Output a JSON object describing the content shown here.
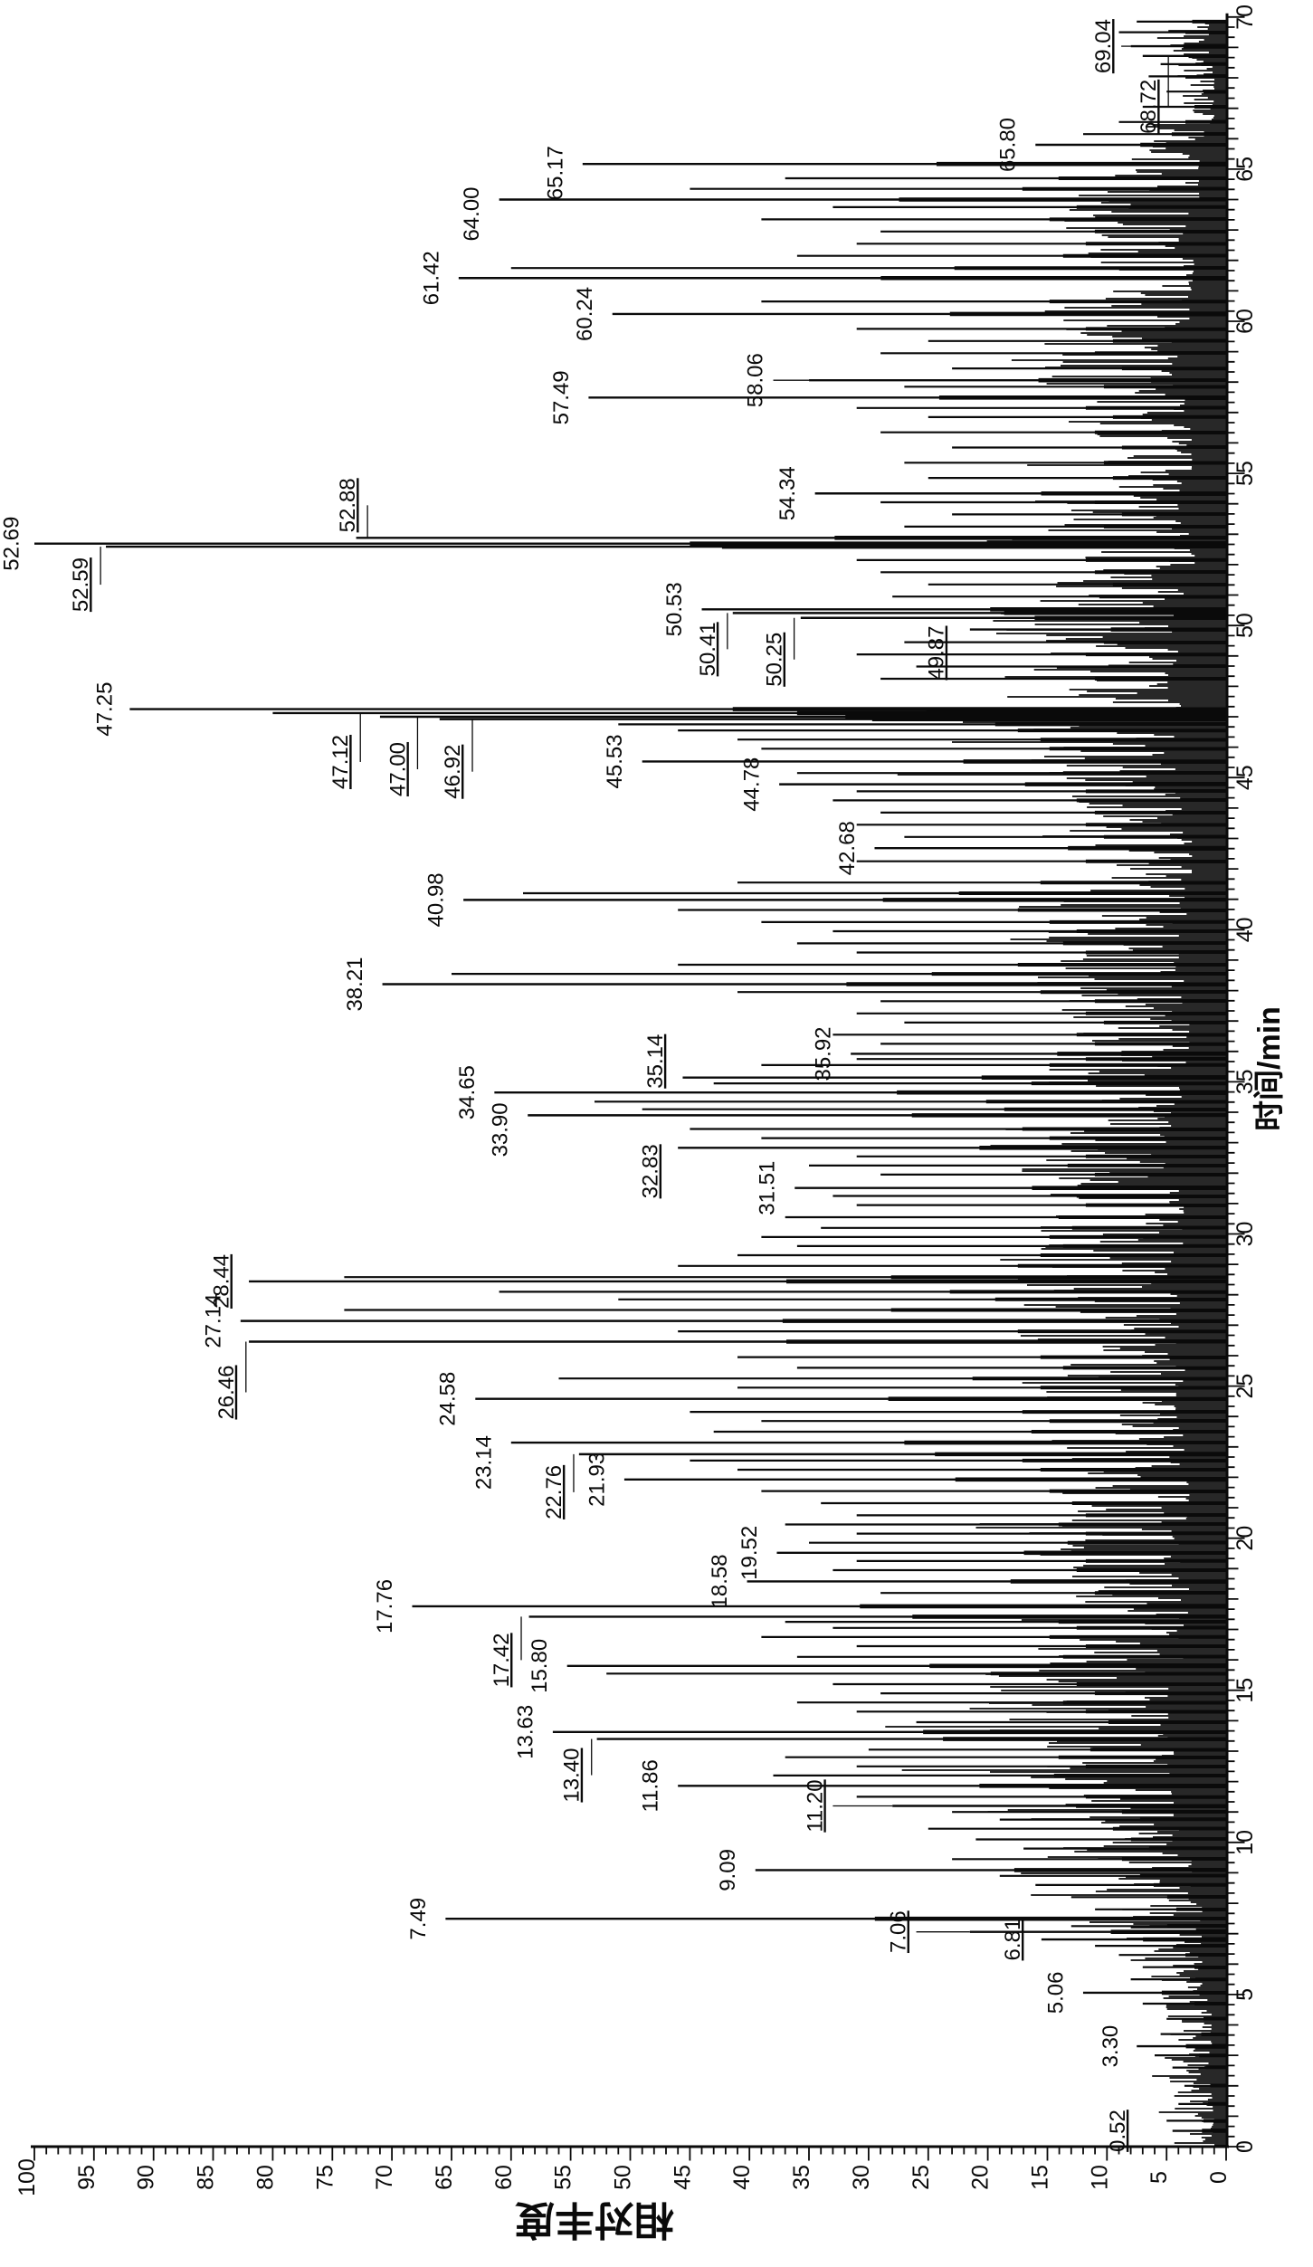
{
  "figure": {
    "background": "#ffffff",
    "ink": "#0a0a0a"
  },
  "chart_data": {
    "type": "line",
    "subtype": "gc-chromatogram, landscape plot rotated 90deg CCW (time runs upward, abundance leftward)",
    "title": "",
    "xlabel": "时间/min",
    "ylabel": "相对丰度",
    "grid": "off",
    "time_axis": {
      "min": 0,
      "max": 70,
      "major_step": 5,
      "minor_step": 0.3333,
      "tick_labels": [
        "0",
        "5",
        "10",
        "15",
        "20",
        "25",
        "30",
        "35",
        "40",
        "45",
        "50",
        "55",
        "60",
        "65",
        "70"
      ]
    },
    "abundance_axis": {
      "min": 0,
      "max": 100,
      "major_step": 5,
      "minor_step": 1,
      "tick_labels": [
        "100",
        "95",
        "90",
        "85",
        "80",
        "75",
        "70",
        "65",
        "60",
        "55",
        "50",
        "45",
        "40",
        "35",
        "30",
        "25",
        "20",
        "15",
        "10",
        "5",
        "0"
      ]
    },
    "labeled_peaks": [
      {
        "label": "0.52",
        "t": 0.52,
        "a": 4.5,
        "la": 7.6,
        "u": 1
      },
      {
        "label": "3.30",
        "t": 3.3,
        "a": 7.5,
        "la": 8.2
      },
      {
        "label": "5.06",
        "t": 5.06,
        "a": 12,
        "la": 12.8
      },
      {
        "label": "6.81",
        "t": 6.81,
        "a": 15.5,
        "la": 16.4,
        "u": 1
      },
      {
        "label": "7.06",
        "t": 7.06,
        "a": 21.5,
        "la": 26,
        "lead": "h",
        "u": 1
      },
      {
        "label": "7.49",
        "t": 7.49,
        "a": 65.5,
        "la": 66.3
      },
      {
        "label": "9.09",
        "t": 9.09,
        "a": 39.5,
        "la": 40.3
      },
      {
        "label": "11.20",
        "t": 11.2,
        "a": 28,
        "la": 33,
        "lead": "h",
        "u": 1
      },
      {
        "label": "11.86",
        "t": 11.86,
        "a": 46,
        "la": 46.8
      },
      {
        "label": "13.40",
        "t": 13.4,
        "a": 52.8,
        "la": 53.4,
        "ts": 40,
        "lead": "v",
        "u": 1
      },
      {
        "label": "13.63",
        "t": 13.63,
        "a": 56.5,
        "la": 57.3
      },
      {
        "label": "15.80",
        "t": 15.8,
        "a": 55.3,
        "la": 56.1
      },
      {
        "label": "17.42",
        "t": 17.42,
        "a": 58.5,
        "la": 59.3,
        "ts": 48,
        "lead": "v",
        "u": 1
      },
      {
        "label": "17.76",
        "t": 17.76,
        "a": 68.3,
        "la": 69.1
      },
      {
        "label": "18.58",
        "t": 18.58,
        "a": 40.2,
        "la": 41
      },
      {
        "label": "19.52",
        "t": 19.52,
        "a": 37.7,
        "la": 38.5
      },
      {
        "label": "21.93",
        "t": 21.93,
        "a": 50.5,
        "la": 51.3
      },
      {
        "label": "22.76",
        "t": 22.76,
        "a": 54.3,
        "la": 54.9,
        "ts": 42,
        "lead": "v",
        "u": 1
      },
      {
        "label": "23.14",
        "t": 23.14,
        "a": 60,
        "la": 60.8,
        "ts": 22
      },
      {
        "label": "24.58",
        "t": 24.58,
        "a": 63,
        "la": 63.8
      },
      {
        "label": "26.46",
        "t": 26.46,
        "a": 82,
        "la": 82.4,
        "ts": 56,
        "lead": "v",
        "u": 1
      },
      {
        "label": "27.14",
        "t": 27.14,
        "a": 82.7,
        "la": 83.5
      },
      {
        "label": "28.44",
        "t": 28.44,
        "a": 82,
        "la": 82.8,
        "u": 1
      },
      {
        "label": "31.51",
        "t": 31.51,
        "a": 36.2,
        "la": 37
      },
      {
        "label": "32.83",
        "t": 32.83,
        "a": 46,
        "la": 46.8,
        "ts": 26,
        "u": 1
      },
      {
        "label": "33.90",
        "t": 33.9,
        "a": 58.6,
        "la": 59.4,
        "ts": 16
      },
      {
        "label": "34.65",
        "t": 34.65,
        "a": 61.4,
        "la": 62.2
      },
      {
        "label": "35.14",
        "t": 35.14,
        "a": 45.6,
        "la": 46.4,
        "ts": -18,
        "u": 1
      },
      {
        "label": "35.92",
        "t": 35.92,
        "a": 31.5,
        "la": 32.3
      },
      {
        "label": "38.21",
        "t": 38.21,
        "a": 70.8,
        "la": 71.6
      },
      {
        "label": "40.98",
        "t": 40.98,
        "a": 64,
        "la": 64.8
      },
      {
        "label": "42.68",
        "t": 42.68,
        "a": 29.5,
        "la": 30.3
      },
      {
        "label": "44.78",
        "t": 44.78,
        "a": 37.5,
        "la": 38.3
      },
      {
        "label": "45.53",
        "t": 45.53,
        "a": 49,
        "la": 49.8
      },
      {
        "label": "46.92",
        "t": 46.92,
        "a": 66,
        "la": 63.4,
        "ts": 58,
        "lead": "v",
        "u": 1
      },
      {
        "label": "47.00",
        "t": 47.0,
        "a": 71,
        "la": 68,
        "ts": 58,
        "lead": "v",
        "u": 1
      },
      {
        "label": "47.12",
        "t": 47.12,
        "a": 80,
        "la": 72.8,
        "ts": 54,
        "lead": "v",
        "u": 1
      },
      {
        "label": "47.25",
        "t": 47.25,
        "a": 92,
        "la": 92.6
      },
      {
        "label": "49.87",
        "t": 49.87,
        "a": 21.5,
        "la": 22.8,
        "ts": 26,
        "u": 1
      },
      {
        "label": "50.25",
        "t": 50.25,
        "a": 35.7,
        "la": 36.4,
        "ts": 46,
        "lead": "v",
        "u": 1
      },
      {
        "label": "50.41",
        "t": 50.41,
        "a": 41.4,
        "la": 42,
        "ts": 40,
        "lead": "v",
        "u": 1
      },
      {
        "label": "50.53",
        "t": 50.53,
        "a": 44,
        "la": 44.8
      },
      {
        "label": "52.59",
        "t": 52.59,
        "a": 94,
        "la": 94.6,
        "ts": 42,
        "lead": "v",
        "u": 1
      },
      {
        "label": "52.69",
        "t": 52.69,
        "a": 100,
        "la": 100.4
      },
      {
        "label": "52.88",
        "t": 52.88,
        "a": 73,
        "la": 72.2,
        "ts": -36,
        "lead": "v",
        "u": 1
      },
      {
        "label": "54.34",
        "t": 54.34,
        "a": 34.5,
        "la": 35.3
      },
      {
        "label": "57.49",
        "t": 57.49,
        "a": 53.5,
        "la": 54.3
      },
      {
        "label": "58.06",
        "t": 58.06,
        "a": 35,
        "la": 38,
        "lead": "h"
      },
      {
        "label": "60.24",
        "t": 60.24,
        "a": 51.5,
        "la": 52.3
      },
      {
        "label": "61.42",
        "t": 61.42,
        "a": 64.4,
        "la": 65.2
      },
      {
        "label": "64.00",
        "t": 64.0,
        "a": 61,
        "la": 61.8,
        "ts": 16
      },
      {
        "label": "65.17",
        "t": 65.17,
        "a": 54,
        "la": 54.8,
        "ts": 10
      },
      {
        "label": "65.80",
        "t": 65.8,
        "a": 16,
        "la": 16.8
      },
      {
        "label": "68.72",
        "t": 68.72,
        "a": 7,
        "la": 5,
        "ts": 56,
        "lead": "v",
        "u": 1
      },
      {
        "label": "69.04",
        "t": 69.04,
        "a": 8,
        "la": 8.8,
        "lead": "h",
        "u": 1
      }
    ],
    "unlabeled_peaks": [
      [
        0.85,
        5
      ],
      [
        1.4,
        4
      ],
      [
        2.0,
        3.5
      ],
      [
        2.6,
        4.5
      ],
      [
        3.0,
        6
      ],
      [
        3.7,
        5.5
      ],
      [
        4.2,
        5
      ],
      [
        4.7,
        7
      ],
      [
        5.5,
        8
      ],
      [
        5.9,
        7
      ],
      [
        6.3,
        9
      ],
      [
        6.6,
        11
      ],
      [
        7.25,
        13
      ],
      [
        7.8,
        11
      ],
      [
        8.2,
        13
      ],
      [
        8.6,
        16
      ],
      [
        8.9,
        19
      ],
      [
        9.45,
        23
      ],
      [
        9.8,
        17
      ],
      [
        10.1,
        21
      ],
      [
        10.45,
        25
      ],
      [
        10.75,
        19
      ],
      [
        11.0,
        23
      ],
      [
        11.5,
        31
      ],
      [
        12.2,
        38
      ],
      [
        12.5,
        31
      ],
      [
        12.8,
        37
      ],
      [
        13.05,
        30
      ],
      [
        13.95,
        26
      ],
      [
        14.3,
        31
      ],
      [
        14.6,
        36
      ],
      [
        14.9,
        29
      ],
      [
        15.2,
        33
      ],
      [
        15.55,
        52
      ],
      [
        16.1,
        36
      ],
      [
        16.45,
        31
      ],
      [
        16.75,
        39
      ],
      [
        17.05,
        33
      ],
      [
        17.25,
        37
      ],
      [
        18.2,
        29
      ],
      [
        18.95,
        33
      ],
      [
        19.25,
        31
      ],
      [
        19.85,
        35
      ],
      [
        20.15,
        31
      ],
      [
        20.45,
        37
      ],
      [
        20.75,
        31
      ],
      [
        21.15,
        34
      ],
      [
        21.55,
        39
      ],
      [
        22.25,
        41
      ],
      [
        22.55,
        45
      ],
      [
        23.5,
        43
      ],
      [
        23.85,
        39
      ],
      [
        24.15,
        45
      ],
      [
        24.95,
        41
      ],
      [
        25.25,
        56
      ],
      [
        25.6,
        36
      ],
      [
        25.95,
        41
      ],
      [
        26.8,
        46
      ],
      [
        27.5,
        74
      ],
      [
        27.85,
        51
      ],
      [
        28.1,
        61
      ],
      [
        28.58,
        74
      ],
      [
        28.95,
        46
      ],
      [
        29.3,
        41
      ],
      [
        29.6,
        36
      ],
      [
        29.9,
        39
      ],
      [
        30.2,
        34
      ],
      [
        30.55,
        37
      ],
      [
        30.95,
        31
      ],
      [
        31.25,
        33
      ],
      [
        31.95,
        29
      ],
      [
        32.25,
        35
      ],
      [
        32.55,
        31
      ],
      [
        33.15,
        39
      ],
      [
        33.45,
        45
      ],
      [
        34.1,
        49
      ],
      [
        34.35,
        53
      ],
      [
        34.95,
        43
      ],
      [
        35.55,
        39
      ],
      [
        35.75,
        31
      ],
      [
        36.25,
        29
      ],
      [
        36.55,
        33
      ],
      [
        36.95,
        27
      ],
      [
        37.25,
        31
      ],
      [
        37.65,
        29
      ],
      [
        37.95,
        41
      ],
      [
        38.55,
        65
      ],
      [
        38.85,
        46
      ],
      [
        39.25,
        31
      ],
      [
        39.55,
        36
      ],
      [
        39.95,
        33
      ],
      [
        40.25,
        39
      ],
      [
        40.65,
        46
      ],
      [
        41.2,
        59
      ],
      [
        41.55,
        41
      ],
      [
        42.25,
        31
      ],
      [
        43.05,
        27
      ],
      [
        43.45,
        31
      ],
      [
        43.85,
        29
      ],
      [
        44.25,
        33
      ],
      [
        44.55,
        31
      ],
      [
        45.15,
        36
      ],
      [
        45.95,
        39
      ],
      [
        46.25,
        41
      ],
      [
        46.55,
        46
      ],
      [
        46.75,
        51
      ],
      [
        48.25,
        29
      ],
      [
        48.65,
        26
      ],
      [
        49.05,
        31
      ],
      [
        49.45,
        27
      ],
      [
        50.95,
        28
      ],
      [
        51.35,
        25
      ],
      [
        51.75,
        29
      ],
      [
        52.15,
        31
      ],
      [
        53.25,
        27
      ],
      [
        53.65,
        23
      ],
      [
        54.05,
        29
      ],
      [
        54.85,
        25
      ],
      [
        55.35,
        27
      ],
      [
        55.85,
        23
      ],
      [
        56.35,
        29
      ],
      [
        56.85,
        25
      ],
      [
        57.15,
        31
      ],
      [
        57.85,
        27
      ],
      [
        58.45,
        23
      ],
      [
        58.95,
        29
      ],
      [
        59.35,
        25
      ],
      [
        59.75,
        31
      ],
      [
        60.65,
        39
      ],
      [
        61.75,
        60
      ],
      [
        62.15,
        36
      ],
      [
        62.55,
        31
      ],
      [
        62.95,
        29
      ],
      [
        63.35,
        39
      ],
      [
        63.75,
        33
      ],
      [
        64.35,
        45
      ],
      [
        64.7,
        37
      ],
      [
        66.15,
        12
      ],
      [
        66.55,
        9
      ],
      [
        67.05,
        7
      ],
      [
        67.55,
        5
      ],
      [
        68.05,
        6.5
      ],
      [
        68.45,
        5.5
      ],
      [
        69.5,
        9
      ],
      [
        69.85,
        7.5
      ]
    ],
    "noise": {
      "seed": 7,
      "bands": [
        [
          0,
          1.2,
          4.5
        ],
        [
          1.2,
          4.5,
          5
        ],
        [
          4.5,
          6,
          7
        ],
        [
          6,
          8,
          9
        ],
        [
          8,
          9.5,
          13
        ],
        [
          9.5,
          11,
          17
        ],
        [
          11,
          13,
          20
        ],
        [
          13,
          16,
          22
        ],
        [
          16,
          17.5,
          16
        ],
        [
          17.5,
          19,
          14
        ],
        [
          19,
          20.5,
          17
        ],
        [
          20.5,
          22,
          14
        ],
        [
          22,
          23.5,
          16
        ],
        [
          23.5,
          25,
          18
        ],
        [
          25,
          26.5,
          15
        ],
        [
          26.5,
          28,
          17
        ],
        [
          28,
          29.5,
          20
        ],
        [
          29.5,
          31,
          16
        ],
        [
          31,
          32.5,
          18
        ],
        [
          32.5,
          34,
          21
        ],
        [
          34,
          35.5,
          17
        ],
        [
          35.5,
          37,
          14
        ],
        [
          37,
          38.5,
          16
        ],
        [
          38.5,
          40,
          18
        ],
        [
          40,
          41.5,
          15
        ],
        [
          41.5,
          43,
          13
        ],
        [
          43,
          44.5,
          16
        ],
        [
          44.5,
          46,
          19
        ],
        [
          46,
          47.5,
          17
        ],
        [
          47.5,
          48.5,
          22
        ],
        [
          48.5,
          49.5,
          18
        ],
        [
          49.5,
          50.5,
          20
        ],
        [
          50.5,
          51.5,
          16
        ],
        [
          51.5,
          52.5,
          12
        ],
        [
          52.5,
          53.5,
          14
        ],
        [
          53.5,
          55,
          17
        ],
        [
          55,
          56.5,
          13
        ],
        [
          56.5,
          58,
          15
        ],
        [
          58,
          59.5,
          18
        ],
        [
          59.5,
          61,
          14
        ],
        [
          61,
          62.5,
          12
        ],
        [
          62.5,
          64,
          14
        ],
        [
          64,
          65.5,
          10
        ],
        [
          65.5,
          66.5,
          7
        ],
        [
          66.5,
          68.5,
          4.5
        ],
        [
          68.5,
          70,
          6.5
        ]
      ]
    }
  }
}
